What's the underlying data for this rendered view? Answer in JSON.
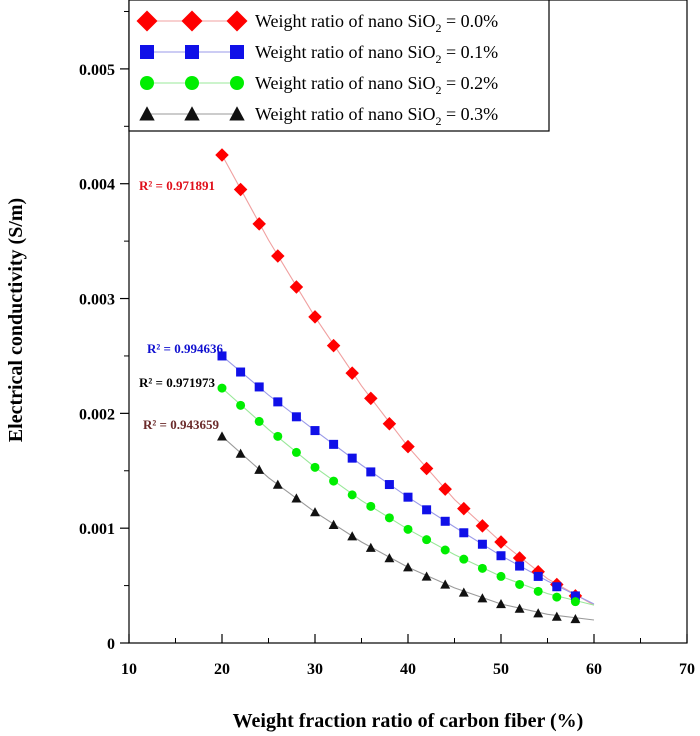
{
  "chart_data": {
    "type": "line",
    "title": "",
    "xlabel": "Weight fraction ratio of carbon fiber (%)",
    "ylabel": "Electrical conductivity (S/m)",
    "xlim": [
      10,
      70
    ],
    "ylim": [
      0,
      0.0056
    ],
    "xticks": [
      10,
      20,
      30,
      40,
      50,
      60,
      70
    ],
    "xtick_labels": [
      "10",
      "20",
      "30",
      "40",
      "50",
      "60",
      "70"
    ],
    "yticks": [
      0,
      0.001,
      0.002,
      0.003,
      0.004,
      0.005
    ],
    "ytick_labels": [
      "0",
      "0.001",
      "0.002",
      "0.003",
      "0.004",
      "0.005"
    ],
    "grid": false,
    "legend_position": "top-left",
    "series": [
      {
        "name": "Weight ratio of nano SiO2 = 0.0%",
        "legend_prefix": "Weight ratio of nano SiO",
        "legend_subscript": "2",
        "legend_suffix": " = 0.0%",
        "marker": "diamond",
        "color": "#ff0000",
        "fit_color": "#f0a0a0",
        "r2_label": "R² = 0.971891",
        "r2_color": "#e0101b",
        "x": [
          20,
          22,
          24,
          26,
          28,
          30,
          32,
          34,
          36,
          38,
          40,
          42,
          44,
          46,
          48,
          50,
          52,
          54,
          56,
          58
        ],
        "y": [
          0.00425,
          0.00395,
          0.00365,
          0.00337,
          0.0031,
          0.00284,
          0.00259,
          0.00235,
          0.00213,
          0.00191,
          0.00171,
          0.00152,
          0.00134,
          0.00117,
          0.00102,
          0.00088,
          0.00074,
          0.00062,
          0.00051,
          0.00041
        ],
        "fit": [
          [
            20,
            0.00425
          ],
          [
            25,
            0.00351
          ],
          [
            30,
            0.00284
          ],
          [
            35,
            0.00224
          ],
          [
            40,
            0.00171
          ],
          [
            45,
            0.00125
          ],
          [
            50,
            0.00088
          ],
          [
            55,
            0.00056
          ],
          [
            60,
            0.00033
          ]
        ]
      },
      {
        "name": "Weight ratio of nano SiO2 = 0.1%",
        "legend_prefix": "Weight ratio of nano SiO",
        "legend_subscript": "2",
        "legend_suffix": " = 0.1%",
        "marker": "square",
        "color": "#1010e8",
        "fit_color": "#9a9ae8",
        "r2_label": "R² = 0.994636",
        "r2_color": "#1010d0",
        "x": [
          20,
          22,
          24,
          26,
          28,
          30,
          32,
          34,
          36,
          38,
          40,
          42,
          44,
          46,
          48,
          50,
          52,
          54,
          56,
          58
        ],
        "y": [
          0.0025,
          0.00236,
          0.00223,
          0.0021,
          0.00197,
          0.00185,
          0.00173,
          0.00161,
          0.00149,
          0.00138,
          0.00127,
          0.00116,
          0.00106,
          0.00096,
          0.00086,
          0.00076,
          0.00067,
          0.00058,
          0.00049,
          0.00041
        ],
        "fit": [
          [
            20,
            0.0025
          ],
          [
            25,
            0.00216
          ],
          [
            30,
            0.00185
          ],
          [
            35,
            0.00155
          ],
          [
            40,
            0.00127
          ],
          [
            45,
            0.00101
          ],
          [
            50,
            0.00076
          ],
          [
            55,
            0.00054
          ],
          [
            60,
            0.00034
          ]
        ]
      },
      {
        "name": "Weight ratio of nano SiO2 = 0.2%",
        "legend_prefix": "Weight ratio of nano SiO",
        "legend_subscript": "2",
        "legend_suffix": " = 0.2%",
        "marker": "circle",
        "color": "#00ee00",
        "fit_color": "#99e899",
        "r2_label": "R² = 0.971973",
        "r2_color": "#000000",
        "x": [
          20,
          22,
          24,
          26,
          28,
          30,
          32,
          34,
          36,
          38,
          40,
          42,
          44,
          46,
          48,
          50,
          52,
          54,
          56,
          58
        ],
        "y": [
          0.00222,
          0.00207,
          0.00193,
          0.0018,
          0.00166,
          0.00153,
          0.00141,
          0.00129,
          0.00119,
          0.00109,
          0.00099,
          0.0009,
          0.00081,
          0.00073,
          0.00065,
          0.00058,
          0.00051,
          0.00045,
          0.0004,
          0.00036
        ],
        "fit": [
          [
            20,
            0.00222
          ],
          [
            25,
            0.00186
          ],
          [
            30,
            0.00153
          ],
          [
            35,
            0.00124
          ],
          [
            40,
            0.00099
          ],
          [
            45,
            0.00077
          ],
          [
            50,
            0.00058
          ],
          [
            55,
            0.00043
          ],
          [
            60,
            0.00033
          ]
        ]
      },
      {
        "name": "Weight ratio of nano SiO2 = 0.3%",
        "legend_prefix": "Weight ratio of nano SiO",
        "legend_subscript": "2",
        "legend_suffix": " = 0.3%",
        "marker": "triangle",
        "color": "#111111",
        "fit_color": "#9a9a9a",
        "r2_label": "R² = 0.943659",
        "r2_color": "#6b2b2b",
        "x": [
          20,
          22,
          24,
          26,
          28,
          30,
          32,
          34,
          36,
          38,
          40,
          42,
          44,
          46,
          48,
          50,
          52,
          54,
          56,
          58
        ],
        "y": [
          0.0018,
          0.00165,
          0.00151,
          0.00138,
          0.00126,
          0.00114,
          0.00103,
          0.00093,
          0.00083,
          0.00074,
          0.00066,
          0.00058,
          0.00051,
          0.00044,
          0.00039,
          0.00034,
          0.0003,
          0.00026,
          0.00023,
          0.00021
        ],
        "fit": [
          [
            20,
            0.0018
          ],
          [
            25,
            0.00144
          ],
          [
            30,
            0.00114
          ],
          [
            35,
            0.00088
          ],
          [
            40,
            0.00066
          ],
          [
            45,
            0.00048
          ],
          [
            50,
            0.00034
          ],
          [
            55,
            0.00025
          ],
          [
            60,
            0.0002
          ]
        ]
      }
    ]
  }
}
